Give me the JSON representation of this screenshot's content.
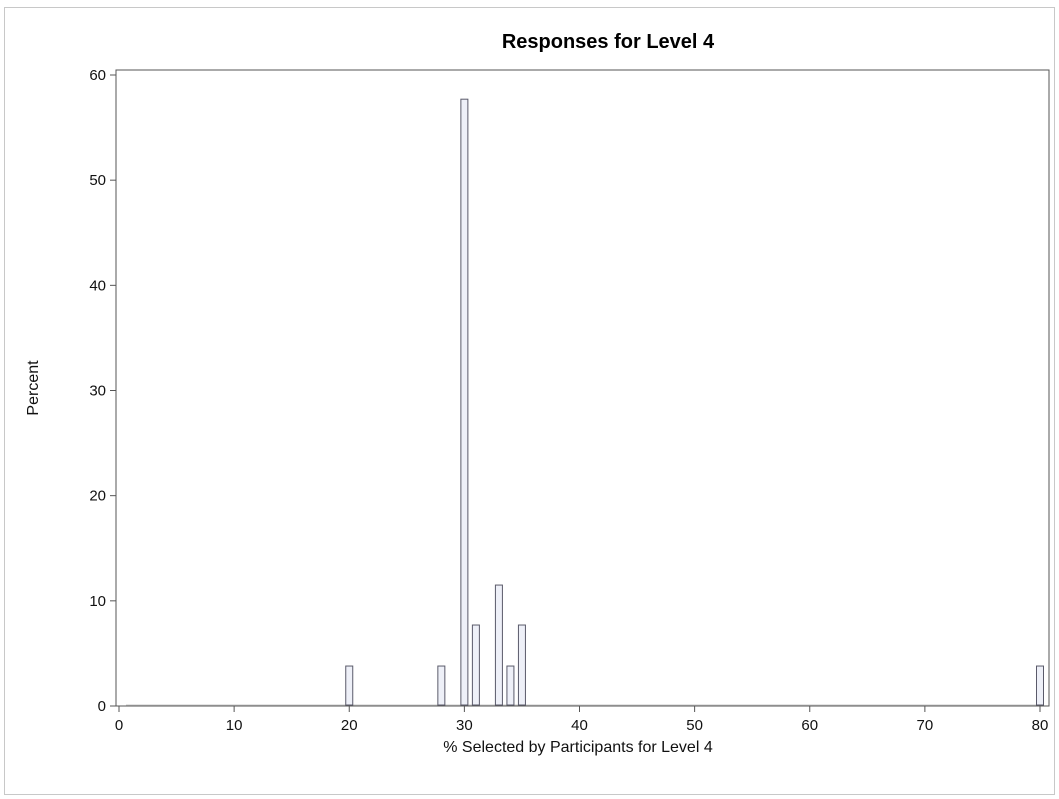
{
  "chart_data": {
    "type": "bar",
    "title": "Responses for Level 4",
    "xlabel": "% Selected by Participants for Level 4",
    "ylabel": "Percent",
    "xlim": [
      0,
      81
    ],
    "ylim": [
      0,
      61
    ],
    "xticks": [
      0,
      10,
      20,
      30,
      40,
      50,
      60,
      70,
      80
    ],
    "yticks": [
      0,
      10,
      20,
      30,
      40,
      50,
      60
    ],
    "bars": [
      {
        "x": 20,
        "value": 3.8
      },
      {
        "x": 28,
        "value": 3.8
      },
      {
        "x": 30,
        "value": 57.7
      },
      {
        "x": 31,
        "value": 7.7
      },
      {
        "x": 33,
        "value": 11.5
      },
      {
        "x": 34,
        "value": 3.8
      },
      {
        "x": 35,
        "value": 7.7
      },
      {
        "x": 80,
        "value": 3.8
      }
    ],
    "grid": false,
    "legend": "none",
    "colors": {
      "bar_fill": "#eef0f8",
      "bar_stroke": "#5a5a6a",
      "axis": "#555555"
    }
  }
}
